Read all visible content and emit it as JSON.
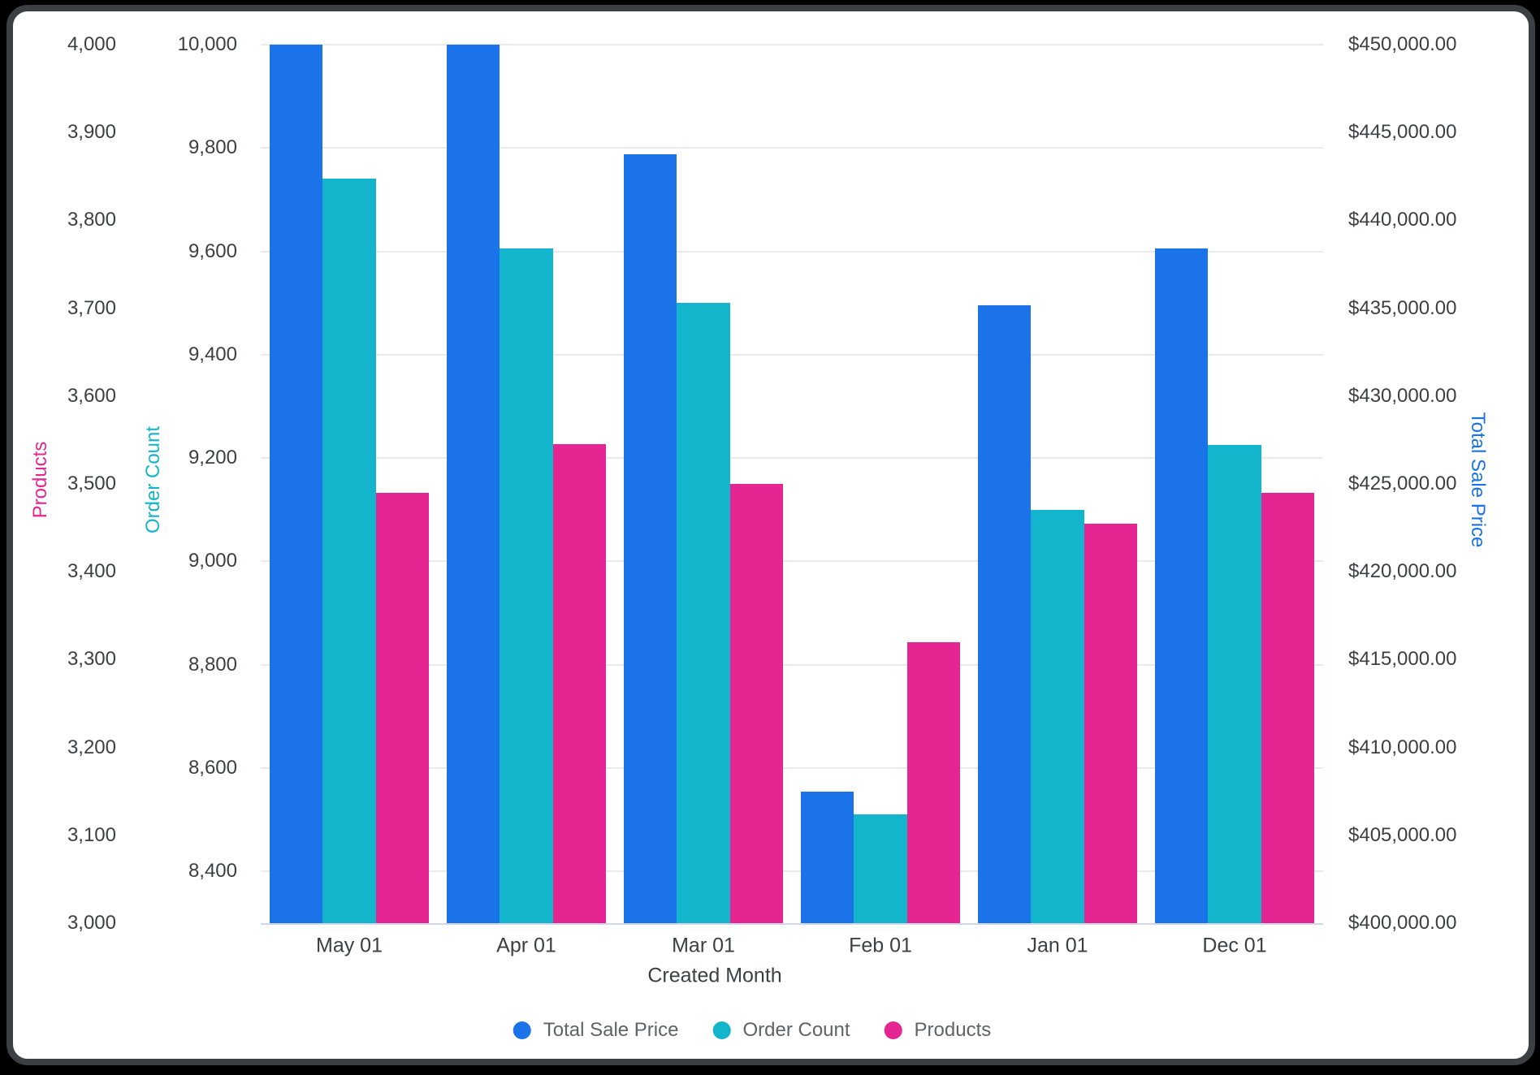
{
  "frame": {
    "background": "#000000",
    "card_border_color": "#3C4045",
    "card_background": "#FFFFFF",
    "gridline_color": "#E8EAED",
    "baseline_color": "#D4D7E8",
    "tick_text_color": "#3C4043",
    "legend_text_color": "#5F6368"
  },
  "chart_data": {
    "type": "bar",
    "title": "",
    "xlabel": "Created Month",
    "grid": true,
    "legend_position": "bottom",
    "categories": [
      "May 01",
      "Apr 01",
      "Mar 01",
      "Feb 01",
      "Jan 01",
      "Dec 01"
    ],
    "series": [
      {
        "name": "Total Sale Price",
        "axis": "price",
        "color": "#1A73E8",
        "values": [
          450000,
          450000,
          443750,
          407500,
          435150,
          438400
        ]
      },
      {
        "name": "Order Count",
        "axis": "order",
        "color": "#12B5CB",
        "values": [
          9740,
          9605,
          9500,
          8510,
          9100,
          9225
        ]
      },
      {
        "name": "Products",
        "axis": "products",
        "color": "#E52592",
        "values": [
          3490,
          3545,
          3500,
          3320,
          3455,
          3490
        ]
      }
    ],
    "axes": {
      "products": {
        "title": "Products",
        "color": "#E52592",
        "side": "left-outer",
        "min": 3000,
        "max": 4000,
        "ticks": [
          {
            "value": 3000,
            "label": "3,000"
          },
          {
            "value": 3100,
            "label": "3,100"
          },
          {
            "value": 3200,
            "label": "3,200"
          },
          {
            "value": 3300,
            "label": "3,300"
          },
          {
            "value": 3400,
            "label": "3,400"
          },
          {
            "value": 3500,
            "label": "3,500"
          },
          {
            "value": 3600,
            "label": "3,600"
          },
          {
            "value": 3700,
            "label": "3,700"
          },
          {
            "value": 3800,
            "label": "3,800"
          },
          {
            "value": 3900,
            "label": "3,900"
          },
          {
            "value": 4000,
            "label": "4,000"
          }
        ]
      },
      "order": {
        "title": "Order Count",
        "color": "#12B5CB",
        "side": "left-inner",
        "gridlines": true,
        "min": 8300,
        "max": 10000,
        "ticks": [
          {
            "value": 8400,
            "label": "8,400"
          },
          {
            "value": 8600,
            "label": "8,600"
          },
          {
            "value": 8800,
            "label": "8,800"
          },
          {
            "value": 9000,
            "label": "9,000"
          },
          {
            "value": 9200,
            "label": "9,200"
          },
          {
            "value": 9400,
            "label": "9,400"
          },
          {
            "value": 9600,
            "label": "9,600"
          },
          {
            "value": 9800,
            "label": "9,800"
          },
          {
            "value": 10000,
            "label": "10,000"
          }
        ]
      },
      "price": {
        "title": "Total Sale Price",
        "color": "#1A73E8",
        "side": "right",
        "min": 400000,
        "max": 450000,
        "ticks": [
          {
            "value": 400000,
            "label": "$400,000.00"
          },
          {
            "value": 405000,
            "label": "$405,000.00"
          },
          {
            "value": 410000,
            "label": "$410,000.00"
          },
          {
            "value": 415000,
            "label": "$415,000.00"
          },
          {
            "value": 420000,
            "label": "$420,000.00"
          },
          {
            "value": 425000,
            "label": "$425,000.00"
          },
          {
            "value": 430000,
            "label": "$430,000.00"
          },
          {
            "value": 435000,
            "label": "$435,000.00"
          },
          {
            "value": 440000,
            "label": "$440,000.00"
          },
          {
            "value": 445000,
            "label": "$445,000.00"
          },
          {
            "value": 450000,
            "label": "$450,000.00"
          }
        ]
      }
    }
  }
}
